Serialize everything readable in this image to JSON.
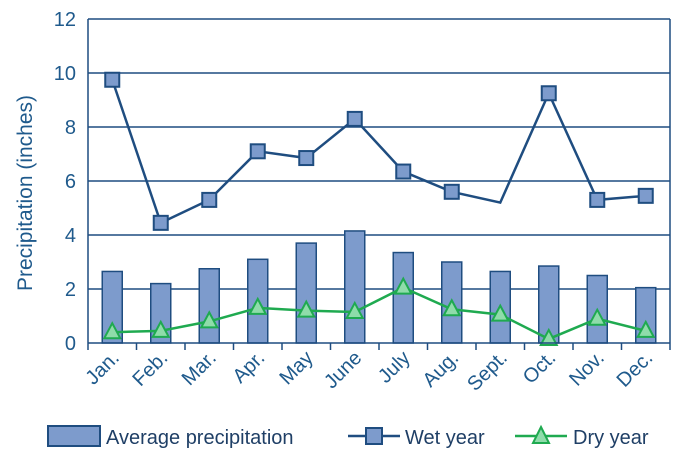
{
  "chart_data": {
    "type": "bar",
    "categories": [
      "Jan.",
      "Feb.",
      "Mar.",
      "Apr.",
      "May",
      "June",
      "July",
      "Aug.",
      "Sept.",
      "Oct.",
      "Nov.",
      "Dec."
    ],
    "series": [
      {
        "name": "Average precipitation",
        "type": "bar",
        "values": [
          2.65,
          2.2,
          2.75,
          3.1,
          3.7,
          4.15,
          3.35,
          3.0,
          2.65,
          2.85,
          2.5,
          2.05
        ]
      },
      {
        "name": "Wet year",
        "type": "line",
        "marker": "square",
        "values": [
          9.75,
          4.45,
          5.3,
          7.1,
          6.85,
          8.3,
          6.35,
          5.6,
          5.2,
          9.25,
          5.3,
          5.45
        ],
        "markers_shown": [
          true,
          true,
          true,
          true,
          true,
          true,
          true,
          true,
          false,
          true,
          true,
          true
        ]
      },
      {
        "name": "Dry year",
        "type": "line",
        "marker": "triangle",
        "values": [
          0.4,
          0.45,
          0.8,
          1.3,
          1.2,
          1.15,
          2.05,
          1.25,
          1.05,
          0.15,
          0.9,
          0.45
        ]
      }
    ],
    "title": "",
    "xlabel": "",
    "ylabel": "Precipitation (inches)",
    "ylim": [
      0,
      12
    ],
    "yticks": [
      0,
      2,
      4,
      6,
      8,
      10,
      12
    ],
    "grid": "horizontal",
    "legend": "bottom",
    "colors": {
      "bar_fill": "#7d9bcc",
      "bar_stroke": "#1f4d80",
      "wet_line": "#1f4d80",
      "wet_marker": "#7d9bcc",
      "dry_line": "#1faa50",
      "dry_marker": "#8fdcaa",
      "grid": "#1f4d80",
      "text": "#1f5a8c"
    }
  }
}
